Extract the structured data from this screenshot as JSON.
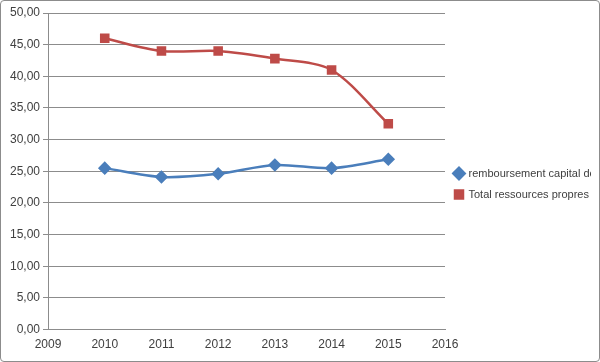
{
  "chart_data": {
    "type": "line",
    "x": [
      2010,
      2011,
      2012,
      2013,
      2014,
      2015
    ],
    "series": [
      {
        "name": "remboursement capital dette",
        "color": "#4a7ebb",
        "marker": "diamond",
        "line_style": "solid",
        "values": [
          25.5,
          24.1,
          24.6,
          26.0,
          25.5,
          26.9
        ]
      },
      {
        "name": "Total ressources propres",
        "color": "#be4b48",
        "marker": "square",
        "line_style": "solid",
        "values": [
          46.0,
          44.0,
          44.0,
          42.8,
          41.0,
          32.5
        ]
      }
    ],
    "xlim": [
      2009,
      2016
    ],
    "xticks": [
      2009,
      2010,
      2011,
      2012,
      2013,
      2014,
      2015,
      2016
    ],
    "ylim": [
      0,
      50
    ],
    "yticks": [
      {
        "value": 0,
        "label": "0,00"
      },
      {
        "value": 5,
        "label": "5,00"
      },
      {
        "value": 10,
        "label": "10,00"
      },
      {
        "value": 15,
        "label": "15,00"
      },
      {
        "value": 20,
        "label": "20,00"
      },
      {
        "value": 25,
        "label": "25,00"
      },
      {
        "value": 30,
        "label": "30,00"
      },
      {
        "value": 35,
        "label": "35,00"
      },
      {
        "value": 40,
        "label": "40,00"
      },
      {
        "value": 45,
        "label": "45,00"
      },
      {
        "value": 50,
        "label": "50,00"
      }
    ],
    "grid": "y",
    "legend": "right"
  }
}
